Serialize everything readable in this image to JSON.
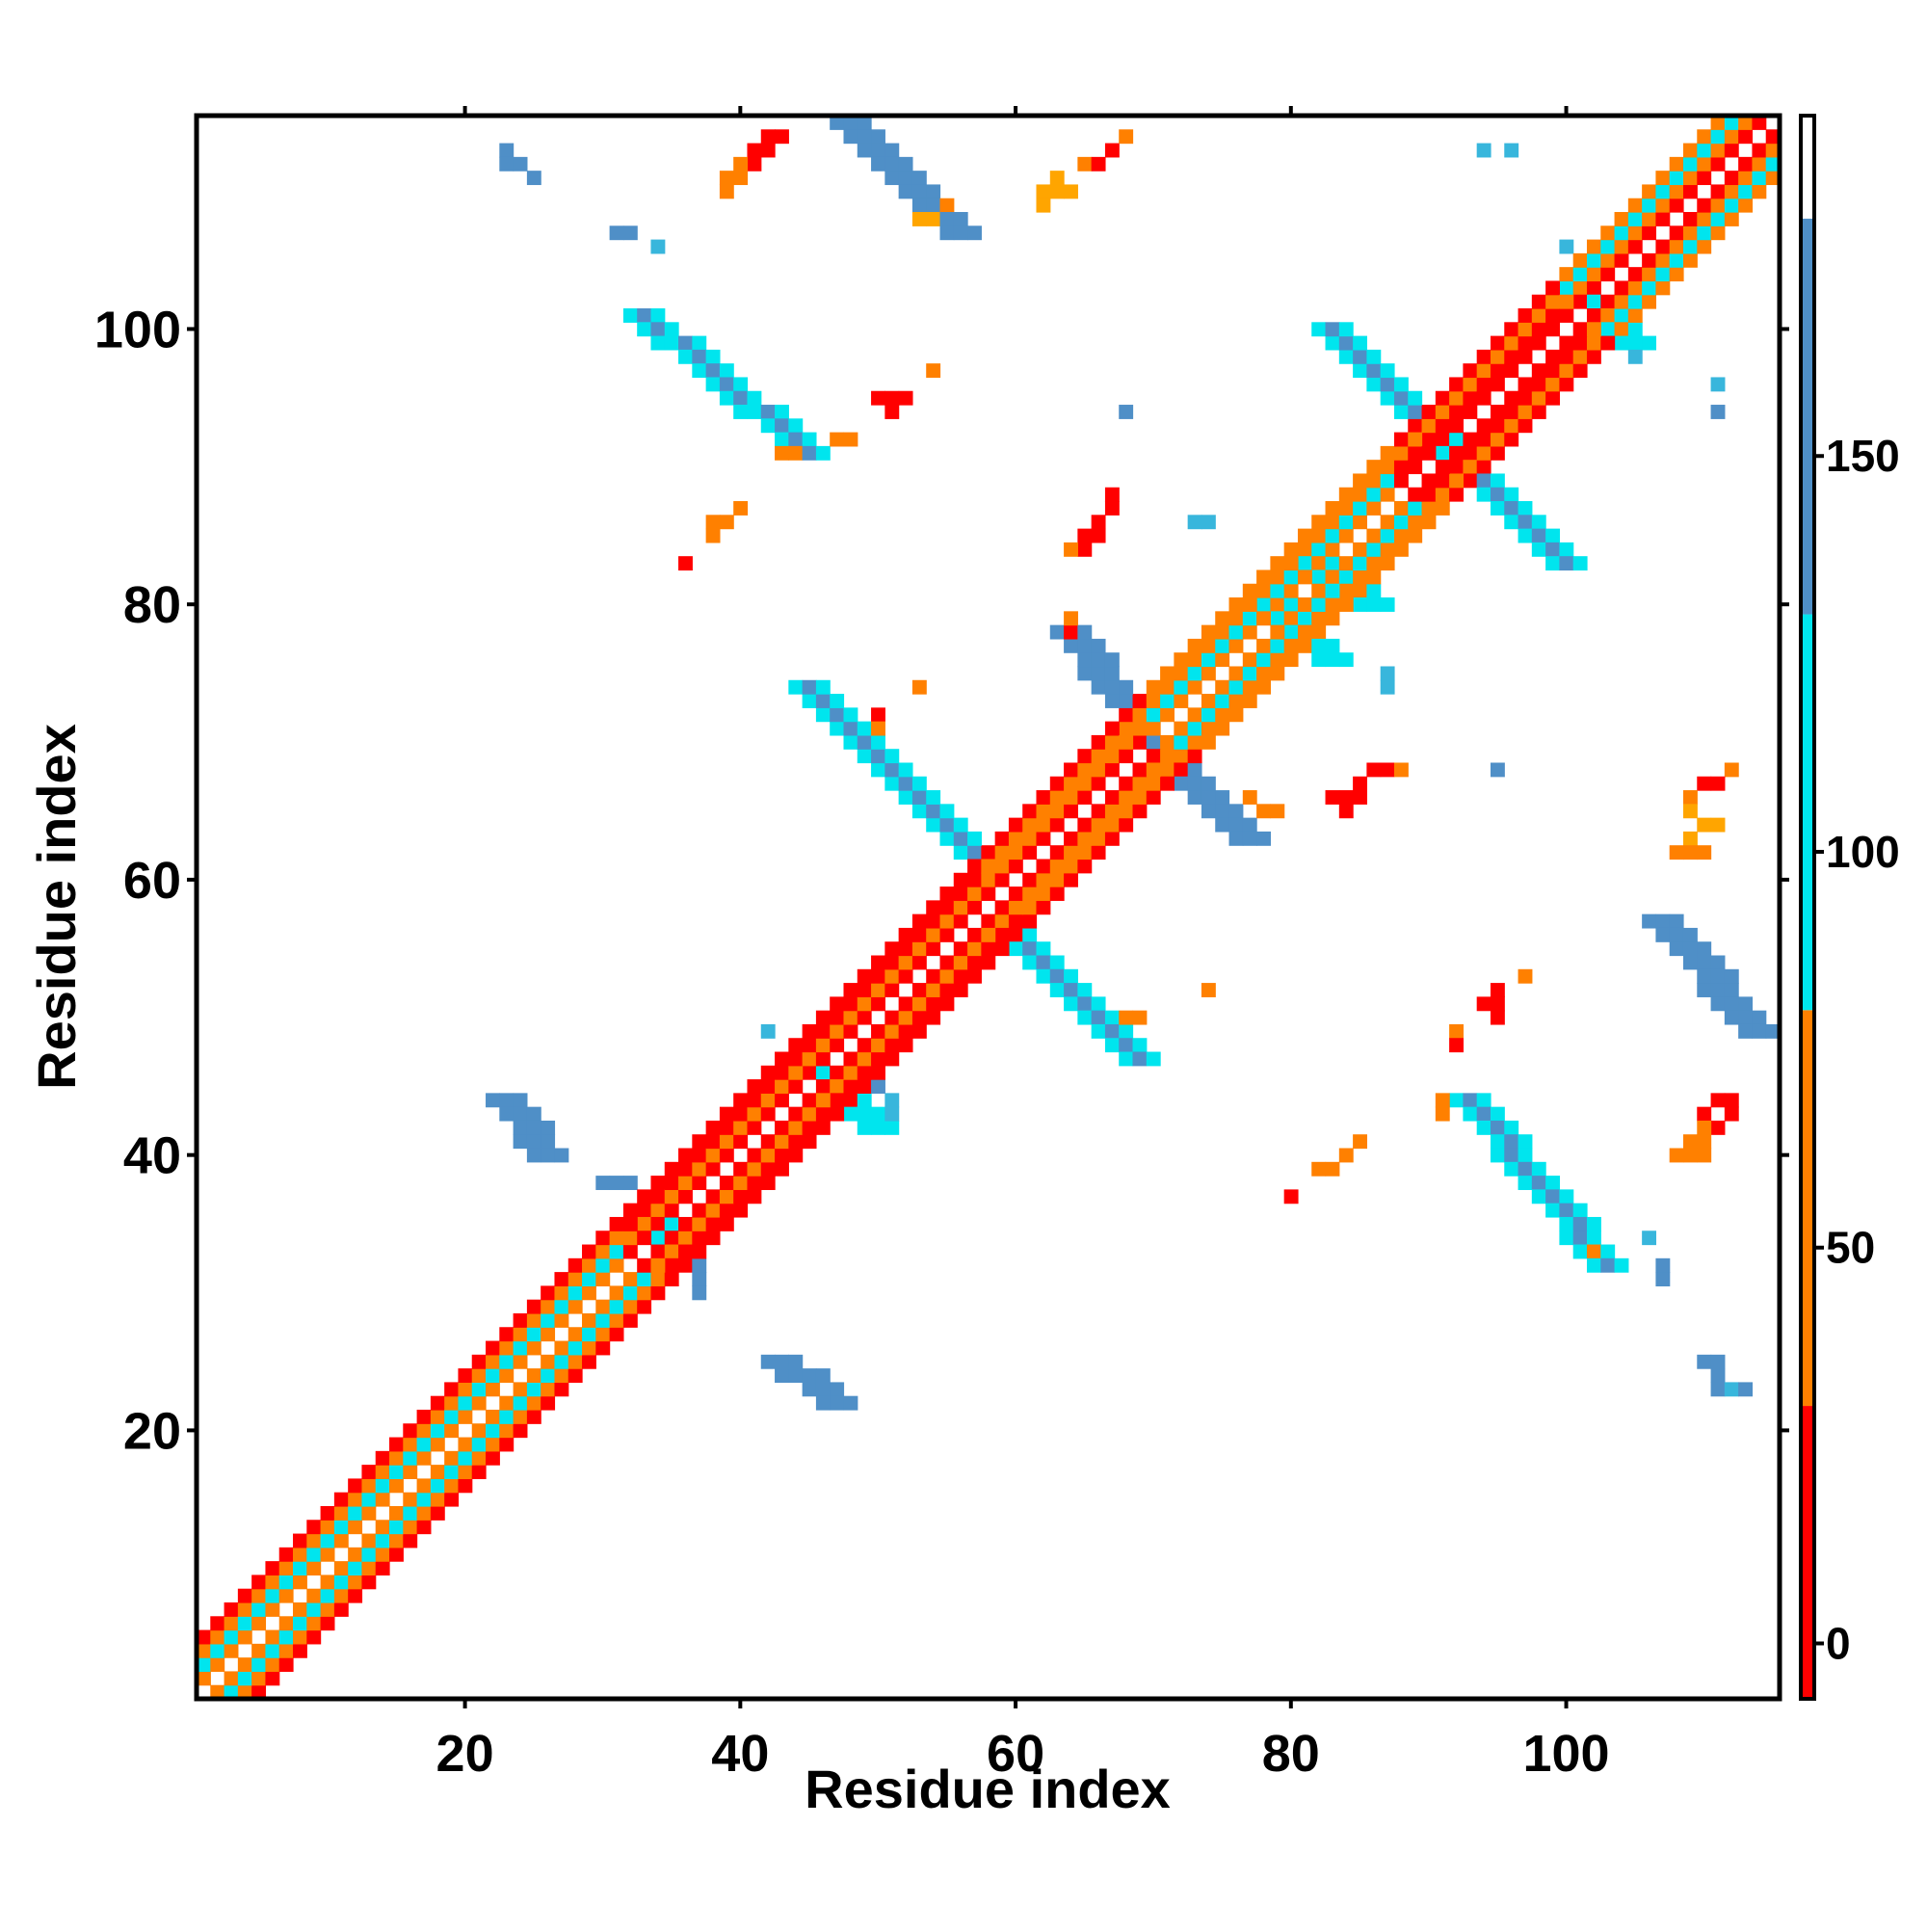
{
  "chart_data": {
    "type": "heatmap",
    "title": "",
    "xlabel": "Residue index",
    "ylabel": "Residue index",
    "xlim": [
      1,
      115
    ],
    "ylim": [
      1,
      115
    ],
    "xticks": [
      20,
      40,
      60,
      80,
      100
    ],
    "yticks": [
      20,
      40,
      60,
      80,
      100
    ],
    "colorbar": {
      "ticks": [
        0,
        50,
        100,
        150
      ],
      "range": [
        -7,
        193
      ],
      "bands": [
        {
          "from": -7,
          "to": 30,
          "color": "#ff0000"
        },
        {
          "from": 30,
          "to": 80,
          "color": "#ff8000"
        },
        {
          "from": 80,
          "to": 130,
          "color": "#00e5ee"
        },
        {
          "from": 130,
          "to": 180,
          "color": "#4f8fc7"
        },
        {
          "from": 180,
          "to": 193,
          "color": "#ffffff"
        }
      ]
    },
    "colors": {
      "red": "#ff0000",
      "orange": "#ff8000",
      "amber": "#ffa500",
      "cyan": "#00e5ee",
      "light-blue": "#38b6dc",
      "steel-blue": "#4f8fc7"
    },
    "grid": false,
    "diagonal_pattern": [
      {
        "start": 1,
        "end": 32,
        "steps": [
          {
            "d": 1,
            "c": "orange"
          },
          {
            "d": 2,
            "c": "cyan"
          },
          {
            "d": 3,
            "c": "orange"
          },
          {
            "d": 4,
            "c": "red"
          }
        ]
      },
      {
        "start": 32,
        "end": 58,
        "steps": [
          {
            "d": 1,
            "c": "red"
          },
          {
            "d": 2,
            "c": "orange"
          },
          {
            "d": 3,
            "c": "red"
          },
          {
            "d": 4,
            "c": "red"
          }
        ]
      },
      {
        "start": 58,
        "end": 70,
        "steps": [
          {
            "d": 1,
            "c": "red"
          },
          {
            "d": 2,
            "c": "orange"
          },
          {
            "d": 3,
            "c": "orange"
          },
          {
            "d": 4,
            "c": "red"
          }
        ]
      },
      {
        "start": 70,
        "end": 88,
        "steps": [
          {
            "d": 1,
            "c": "orange"
          },
          {
            "d": 2,
            "c": "cyan"
          },
          {
            "d": 3,
            "c": "orange"
          },
          {
            "d": 4,
            "c": "orange"
          }
        ]
      },
      {
        "start": 88,
        "end": 100,
        "steps": [
          {
            "d": 1,
            "c": "red"
          },
          {
            "d": 2,
            "c": "red"
          },
          {
            "d": 3,
            "c": "orange"
          },
          {
            "d": 4,
            "c": "red"
          }
        ]
      },
      {
        "start": 100,
        "end": 115,
        "steps": [
          {
            "d": 1,
            "c": "red"
          },
          {
            "d": 2,
            "c": "orange"
          },
          {
            "d": 3,
            "c": "cyan"
          },
          {
            "d": 4,
            "c": "orange"
          }
        ]
      }
    ],
    "contact_bands": [
      {
        "from": [
          57,
          62
        ],
        "to": [
          45,
          74
        ],
        "color": "steel-blue",
        "edge": "cyan",
        "width": 3
      },
      {
        "from": [
          59,
          57
        ],
        "to": [
          69,
          47
        ],
        "color": "steel-blue",
        "edge": "cyan",
        "width": 3
      },
      {
        "from": [
          70,
          70
        ],
        "to": [
          64,
          78
        ],
        "color": "steel-blue",
        "edge": "cyan",
        "width": 2
      },
      {
        "from": [
          70,
          70
        ],
        "to": [
          77,
          63
        ],
        "color": "steel-blue",
        "edge": "cyan",
        "width": 2
      },
      {
        "from": [
          91,
          92
        ],
        "to": [
          83,
          100
        ],
        "color": "steel-blue",
        "edge": "cyan",
        "width": 3
      },
      {
        "from": [
          92,
          91
        ],
        "to": [
          100,
          83
        ],
        "color": "steel-blue",
        "edge": "cyan",
        "width": 3
      },
      {
        "from": [
          33,
          101
        ],
        "to": [
          45,
          91
        ],
        "color": "steel-blue",
        "edge": "cyan",
        "width": 3
      },
      {
        "from": [
          93,
          44
        ],
        "to": [
          103,
          32
        ],
        "color": "steel-blue",
        "edge": "cyan",
        "width": 3
      },
      {
        "from": [
          48,
          115
        ],
        "to": [
          56,
          107
        ],
        "color": "steel-blue",
        "edge": "cyan",
        "width": 2
      },
      {
        "from": [
          107,
          57
        ],
        "to": [
          114,
          49
        ],
        "color": "steel-blue",
        "edge": "cyan",
        "width": 2
      },
      {
        "from": [
          43,
          25
        ],
        "to": [
          47,
          22
        ],
        "color": "steel-blue",
        "edge": "cyan",
        "width": 2
      },
      {
        "from": [
          23,
          44
        ],
        "to": [
          26,
          40
        ],
        "color": "steel-blue",
        "edge": "cyan",
        "width": 2
      },
      {
        "from": [
          46,
          46
        ],
        "to": [
          50,
          42
        ],
        "color": "cyan",
        "edge": "light-blue",
        "width": 2
      },
      {
        "from": [
          33,
          36
        ],
        "to": [
          36,
          32
        ],
        "color": "cyan",
        "edge": "light-blue",
        "width": 2
      },
      {
        "from": [
          101,
          103
        ],
        "to": [
          105,
          99
        ],
        "color": "cyan",
        "edge": "light-blue",
        "width": 2
      },
      {
        "from": [
          79,
          80
        ],
        "to": [
          83,
          76
        ],
        "color": "cyan",
        "edge": "light-blue",
        "width": 2
      },
      {
        "from": [
          81,
          84
        ],
        "to": [
          86,
          80
        ],
        "color": "cyan",
        "edge": "light-blue",
        "width": 2
      }
    ],
    "contact_points": [
      {
        "x": 23,
        "y": 113,
        "c": "steel-blue"
      },
      {
        "x": 23,
        "y": 112,
        "c": "steel-blue"
      },
      {
        "x": 24,
        "y": 112,
        "c": "steel-blue"
      },
      {
        "x": 25,
        "y": 111,
        "c": "steel-blue"
      },
      {
        "x": 31,
        "y": 107,
        "c": "steel-blue"
      },
      {
        "x": 32,
        "y": 107,
        "c": "steel-blue"
      },
      {
        "x": 34,
        "y": 106,
        "c": "light-blue"
      },
      {
        "x": 37,
        "y": 32,
        "c": "steel-blue"
      },
      {
        "x": 37,
        "y": 31,
        "c": "steel-blue"
      },
      {
        "x": 37,
        "y": 30,
        "c": "steel-blue"
      },
      {
        "x": 30,
        "y": 38,
        "c": "steel-blue"
      },
      {
        "x": 31,
        "y": 38,
        "c": "steel-blue"
      },
      {
        "x": 32,
        "y": 38,
        "c": "steel-blue"
      },
      {
        "x": 42,
        "y": 49,
        "c": "light-blue"
      },
      {
        "x": 49,
        "y": 45,
        "c": "steel-blue"
      },
      {
        "x": 50,
        "y": 45,
        "c": "steel-blue"
      },
      {
        "x": 51,
        "y": 44,
        "c": "light-blue"
      },
      {
        "x": 51,
        "y": 43,
        "c": "light-blue"
      },
      {
        "x": 68,
        "y": 94,
        "c": "steel-blue"
      },
      {
        "x": 73,
        "y": 86,
        "c": "light-blue"
      },
      {
        "x": 74,
        "y": 86,
        "c": "light-blue"
      },
      {
        "x": 87,
        "y": 75,
        "c": "light-blue"
      },
      {
        "x": 87,
        "y": 74,
        "c": "light-blue"
      },
      {
        "x": 95,
        "y": 68,
        "c": "steel-blue"
      },
      {
        "x": 94,
        "y": 113,
        "c": "light-blue"
      },
      {
        "x": 96,
        "y": 113,
        "c": "light-blue"
      },
      {
        "x": 100,
        "y": 106,
        "c": "light-blue"
      },
      {
        "x": 105,
        "y": 98,
        "c": "light-blue"
      },
      {
        "x": 111,
        "y": 96,
        "c": "light-blue"
      },
      {
        "x": 111,
        "y": 94,
        "c": "steel-blue"
      },
      {
        "x": 106,
        "y": 34,
        "c": "light-blue"
      },
      {
        "x": 107,
        "y": 32,
        "c": "steel-blue"
      },
      {
        "x": 107,
        "y": 31,
        "c": "steel-blue"
      },
      {
        "x": 110,
        "y": 25,
        "c": "steel-blue"
      },
      {
        "x": 111,
        "y": 25,
        "c": "steel-blue"
      },
      {
        "x": 111,
        "y": 24,
        "c": "steel-blue"
      },
      {
        "x": 111,
        "y": 23,
        "c": "steel-blue"
      },
      {
        "x": 112,
        "y": 23,
        "c": "light-blue"
      },
      {
        "x": 113,
        "y": 23,
        "c": "steel-blue"
      },
      {
        "x": 41,
        "y": 113,
        "c": "red"
      },
      {
        "x": 42,
        "y": 114,
        "c": "red"
      },
      {
        "x": 43,
        "y": 114,
        "c": "red"
      },
      {
        "x": 42,
        "y": 113,
        "c": "red"
      },
      {
        "x": 41,
        "y": 112,
        "c": "red"
      },
      {
        "x": 40,
        "y": 112,
        "c": "orange"
      },
      {
        "x": 39,
        "y": 111,
        "c": "orange"
      },
      {
        "x": 40,
        "y": 111,
        "c": "orange"
      },
      {
        "x": 39,
        "y": 110,
        "c": "orange"
      },
      {
        "x": 53,
        "y": 108,
        "c": "amber"
      },
      {
        "x": 54,
        "y": 108,
        "c": "amber"
      },
      {
        "x": 55,
        "y": 109,
        "c": "orange"
      },
      {
        "x": 62,
        "y": 110,
        "c": "amber"
      },
      {
        "x": 63,
        "y": 110,
        "c": "amber"
      },
      {
        "x": 64,
        "y": 110,
        "c": "amber"
      },
      {
        "x": 62,
        "y": 109,
        "c": "amber"
      },
      {
        "x": 63,
        "y": 111,
        "c": "amber"
      },
      {
        "x": 65,
        "y": 112,
        "c": "orange"
      },
      {
        "x": 66,
        "y": 112,
        "c": "red"
      },
      {
        "x": 67,
        "y": 113,
        "c": "red"
      },
      {
        "x": 68,
        "y": 114,
        "c": "orange"
      },
      {
        "x": 50,
        "y": 95,
        "c": "red"
      },
      {
        "x": 51,
        "y": 95,
        "c": "red"
      },
      {
        "x": 52,
        "y": 95,
        "c": "red"
      },
      {
        "x": 51,
        "y": 94,
        "c": "red"
      },
      {
        "x": 54,
        "y": 97,
        "c": "orange"
      },
      {
        "x": 43,
        "y": 91,
        "c": "orange"
      },
      {
        "x": 44,
        "y": 91,
        "c": "orange"
      },
      {
        "x": 47,
        "y": 92,
        "c": "orange"
      },
      {
        "x": 48,
        "y": 92,
        "c": "orange"
      },
      {
        "x": 38,
        "y": 86,
        "c": "orange"
      },
      {
        "x": 39,
        "y": 86,
        "c": "orange"
      },
      {
        "x": 38,
        "y": 85,
        "c": "orange"
      },
      {
        "x": 40,
        "y": 87,
        "c": "orange"
      },
      {
        "x": 36,
        "y": 83,
        "c": "red"
      },
      {
        "x": 67,
        "y": 88,
        "c": "red"
      },
      {
        "x": 67,
        "y": 87,
        "c": "red"
      },
      {
        "x": 66,
        "y": 86,
        "c": "red"
      },
      {
        "x": 65,
        "y": 85,
        "c": "red"
      },
      {
        "x": 66,
        "y": 85,
        "c": "red"
      },
      {
        "x": 65,
        "y": 84,
        "c": "red"
      },
      {
        "x": 64,
        "y": 84,
        "c": "orange"
      },
      {
        "x": 64,
        "y": 79,
        "c": "orange"
      },
      {
        "x": 64,
        "y": 78,
        "c": "red"
      },
      {
        "x": 53,
        "y": 74,
        "c": "orange"
      },
      {
        "x": 50,
        "y": 72,
        "c": "red"
      },
      {
        "x": 50,
        "y": 71,
        "c": "orange"
      },
      {
        "x": 86,
        "y": 68,
        "c": "red"
      },
      {
        "x": 87,
        "y": 68,
        "c": "red"
      },
      {
        "x": 88,
        "y": 68,
        "c": "orange"
      },
      {
        "x": 85,
        "y": 67,
        "c": "red"
      },
      {
        "x": 85,
        "y": 66,
        "c": "red"
      },
      {
        "x": 83,
        "y": 66,
        "c": "red"
      },
      {
        "x": 84,
        "y": 66,
        "c": "red"
      },
      {
        "x": 84,
        "y": 65,
        "c": "red"
      },
      {
        "x": 78,
        "y": 65,
        "c": "orange"
      },
      {
        "x": 79,
        "y": 65,
        "c": "orange"
      },
      {
        "x": 77,
        "y": 66,
        "c": "orange"
      },
      {
        "x": 112,
        "y": 68,
        "c": "orange"
      },
      {
        "x": 111,
        "y": 67,
        "c": "red"
      },
      {
        "x": 110,
        "y": 67,
        "c": "red"
      },
      {
        "x": 109,
        "y": 66,
        "c": "orange"
      },
      {
        "x": 109,
        "y": 65,
        "c": "amber"
      },
      {
        "x": 110,
        "y": 64,
        "c": "amber"
      },
      {
        "x": 111,
        "y": 64,
        "c": "amber"
      },
      {
        "x": 109,
        "y": 63,
        "c": "amber"
      },
      {
        "x": 108,
        "y": 62,
        "c": "orange"
      },
      {
        "x": 109,
        "y": 62,
        "c": "orange"
      },
      {
        "x": 110,
        "y": 62,
        "c": "orange"
      },
      {
        "x": 68,
        "y": 50,
        "c": "orange"
      },
      {
        "x": 69,
        "y": 50,
        "c": "orange"
      },
      {
        "x": 74,
        "y": 52,
        "c": "orange"
      },
      {
        "x": 97,
        "y": 53,
        "c": "orange"
      },
      {
        "x": 95,
        "y": 52,
        "c": "red"
      },
      {
        "x": 94,
        "y": 51,
        "c": "red"
      },
      {
        "x": 95,
        "y": 51,
        "c": "red"
      },
      {
        "x": 95,
        "y": 50,
        "c": "red"
      },
      {
        "x": 92,
        "y": 49,
        "c": "orange"
      },
      {
        "x": 92,
        "y": 48,
        "c": "red"
      },
      {
        "x": 91,
        "y": 44,
        "c": "orange"
      },
      {
        "x": 91,
        "y": 43,
        "c": "orange"
      },
      {
        "x": 85,
        "y": 41,
        "c": "orange"
      },
      {
        "x": 84,
        "y": 40,
        "c": "orange"
      },
      {
        "x": 83,
        "y": 39,
        "c": "orange"
      },
      {
        "x": 82,
        "y": 39,
        "c": "orange"
      },
      {
        "x": 80,
        "y": 37,
        "c": "red"
      },
      {
        "x": 112,
        "y": 44,
        "c": "red"
      },
      {
        "x": 111,
        "y": 44,
        "c": "red"
      },
      {
        "x": 112,
        "y": 43,
        "c": "red"
      },
      {
        "x": 110,
        "y": 43,
        "c": "red"
      },
      {
        "x": 111,
        "y": 42,
        "c": "red"
      },
      {
        "x": 110,
        "y": 42,
        "c": "orange"
      },
      {
        "x": 109,
        "y": 41,
        "c": "orange"
      },
      {
        "x": 110,
        "y": 41,
        "c": "orange"
      },
      {
        "x": 108,
        "y": 40,
        "c": "orange"
      },
      {
        "x": 109,
        "y": 40,
        "c": "orange"
      },
      {
        "x": 110,
        "y": 40,
        "c": "orange"
      },
      {
        "x": 102,
        "y": 33,
        "c": "orange"
      }
    ]
  }
}
